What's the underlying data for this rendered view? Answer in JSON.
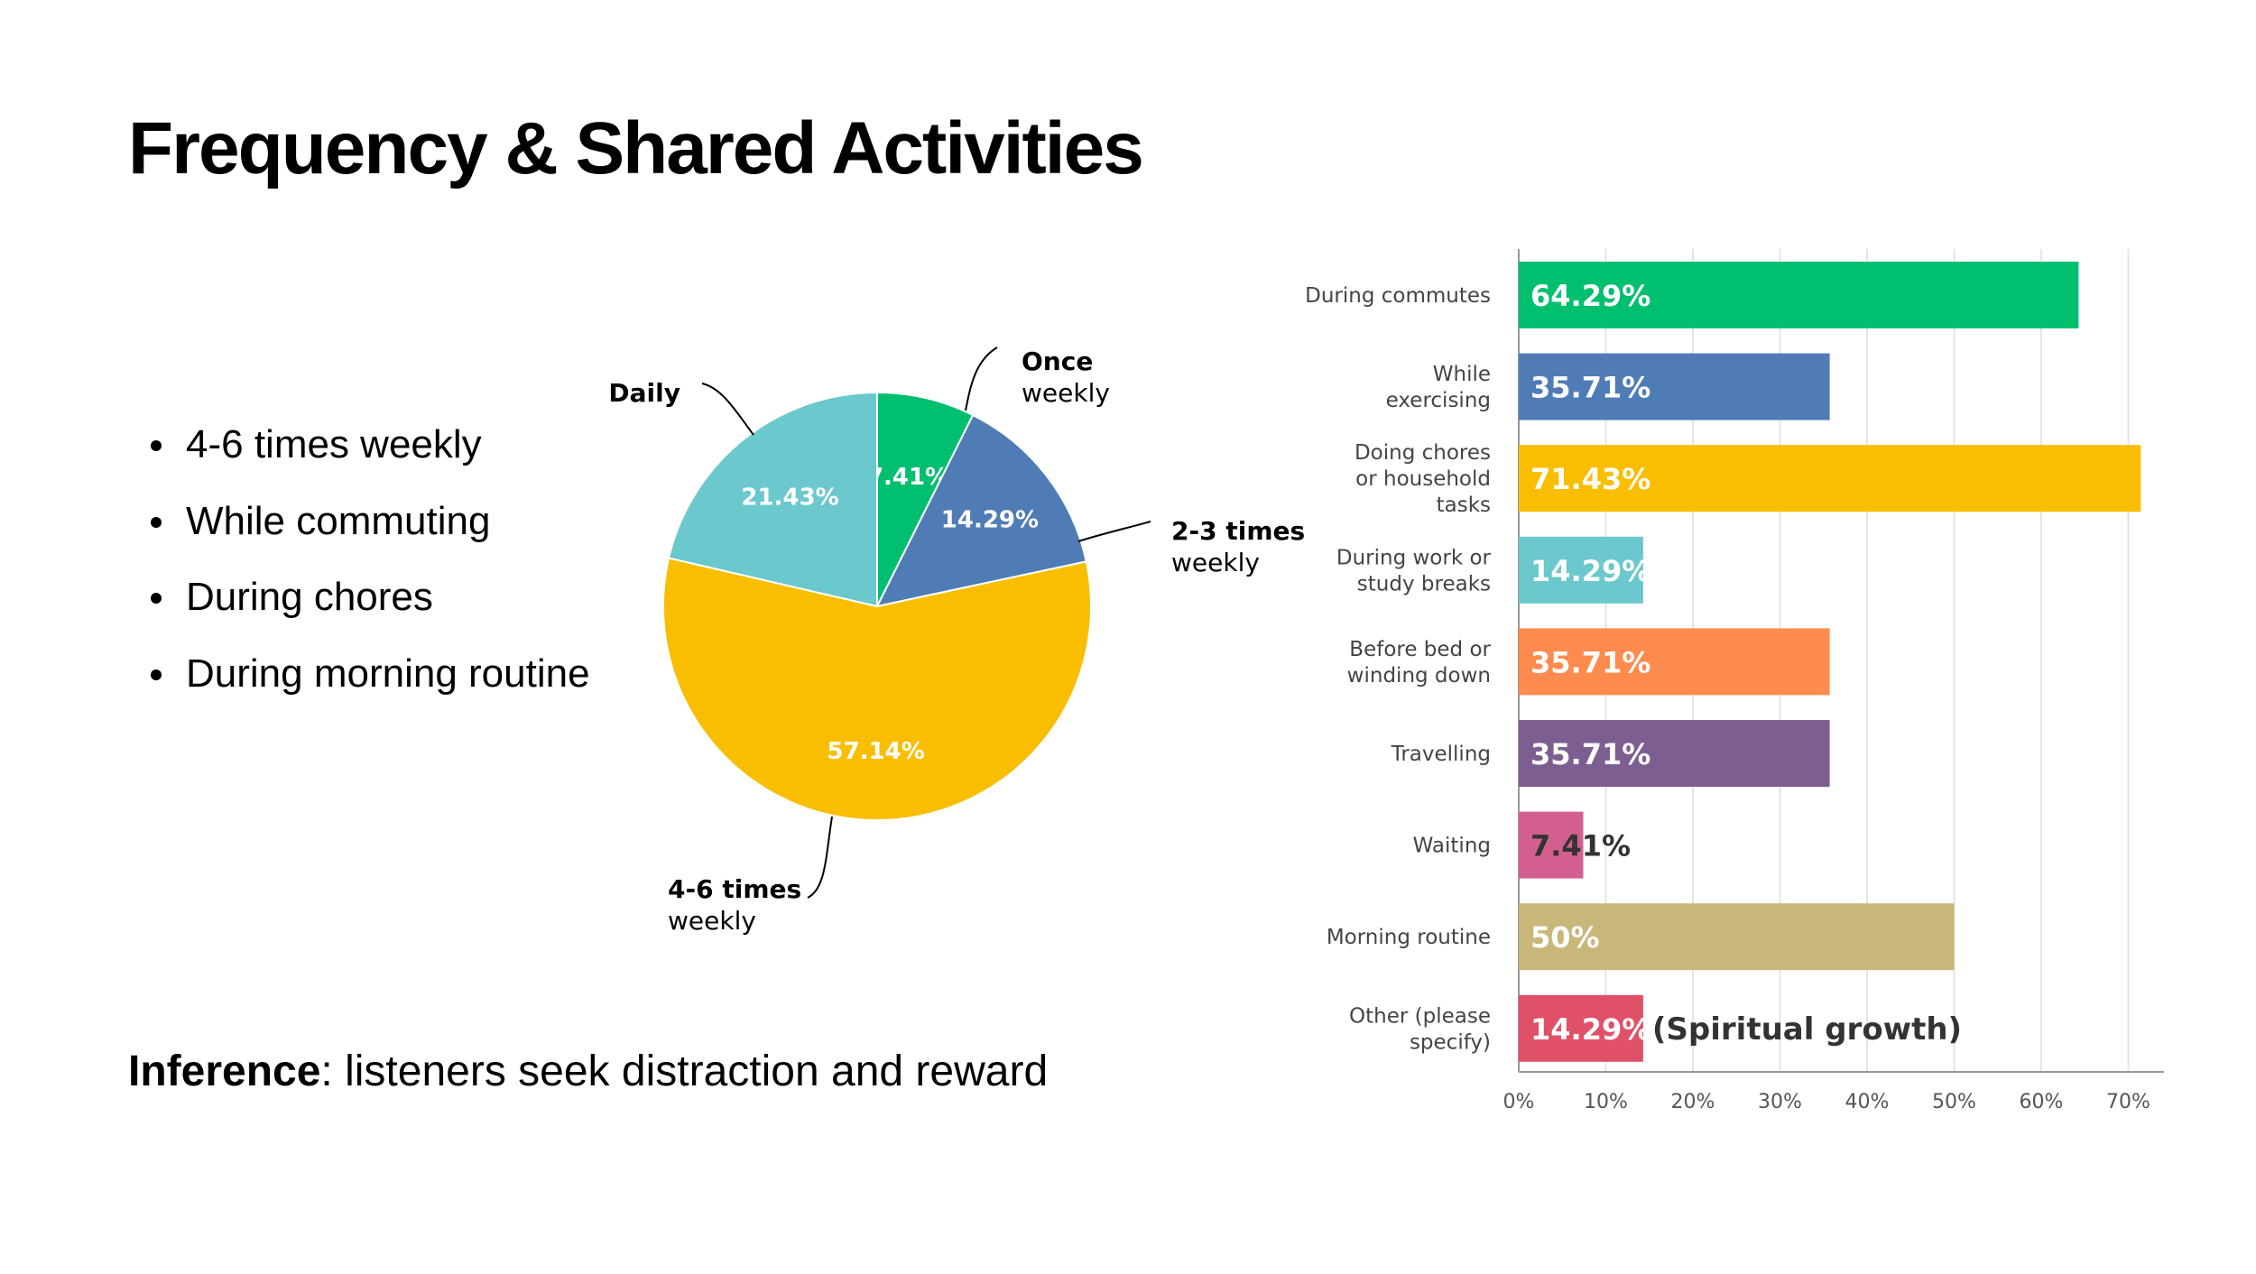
{
  "slide": {
    "title": "Frequency & Shared Activities",
    "bullets": [
      "4-6 times weekly",
      "While commuting",
      "During chores",
      "During morning routine"
    ],
    "inference_label": "Inference",
    "inference_text": ": listeners seek distraction and reward"
  },
  "chart_data": [
    {
      "type": "pie",
      "title": "",
      "slices": [
        {
          "label": [
            "Once",
            "weekly"
          ],
          "value": 7.41,
          "display": "7.41%",
          "color": "#00BF6F"
        },
        {
          "label": [
            "2-3 times",
            "weekly"
          ],
          "value": 14.29,
          "display": "14.29%",
          "color": "#507CB6"
        },
        {
          "label": [
            "4-6 times",
            "weekly"
          ],
          "value": 57.14,
          "display": "57.14%",
          "color": "#F9BE00"
        },
        {
          "label": [
            "Daily"
          ],
          "value": 21.43,
          "display": "21.43%",
          "color": "#6BC8CD"
        }
      ]
    },
    {
      "type": "bar",
      "orientation": "horizontal",
      "title": "",
      "categories": [
        [
          "During commutes"
        ],
        [
          "While",
          "exercising"
        ],
        [
          "Doing chores",
          "or household",
          "tasks"
        ],
        [
          "During work or",
          "study breaks"
        ],
        [
          "Before bed or",
          "winding down"
        ],
        [
          "Travelling"
        ],
        [
          "Waiting"
        ],
        [
          "Morning routine"
        ],
        [
          "Other (please",
          "specify)"
        ]
      ],
      "values": [
        64.29,
        35.71,
        71.43,
        14.29,
        35.71,
        35.71,
        7.41,
        50,
        14.29
      ],
      "value_labels": [
        "64.29%",
        "35.71%",
        "71.43%",
        "14.29%",
        "35.71%",
        "35.71%",
        "7.41%",
        "50%",
        "14.29%"
      ],
      "colors": [
        "#00BF6F",
        "#507CB6",
        "#F9BE00",
        "#6BC8CD",
        "#FF8B4F",
        "#7D5E90",
        "#D25F90",
        "#C9B77A",
        "#E05168"
      ],
      "annotations": [
        "",
        "",
        "",
        "",
        "",
        "",
        "",
        "",
        "(Spiritual growth)"
      ],
      "xticks": [
        "0%",
        "10%",
        "20%",
        "30%",
        "40%",
        "50%",
        "60%",
        "70%"
      ],
      "xlim": [
        0,
        74
      ],
      "grid": true
    }
  ]
}
